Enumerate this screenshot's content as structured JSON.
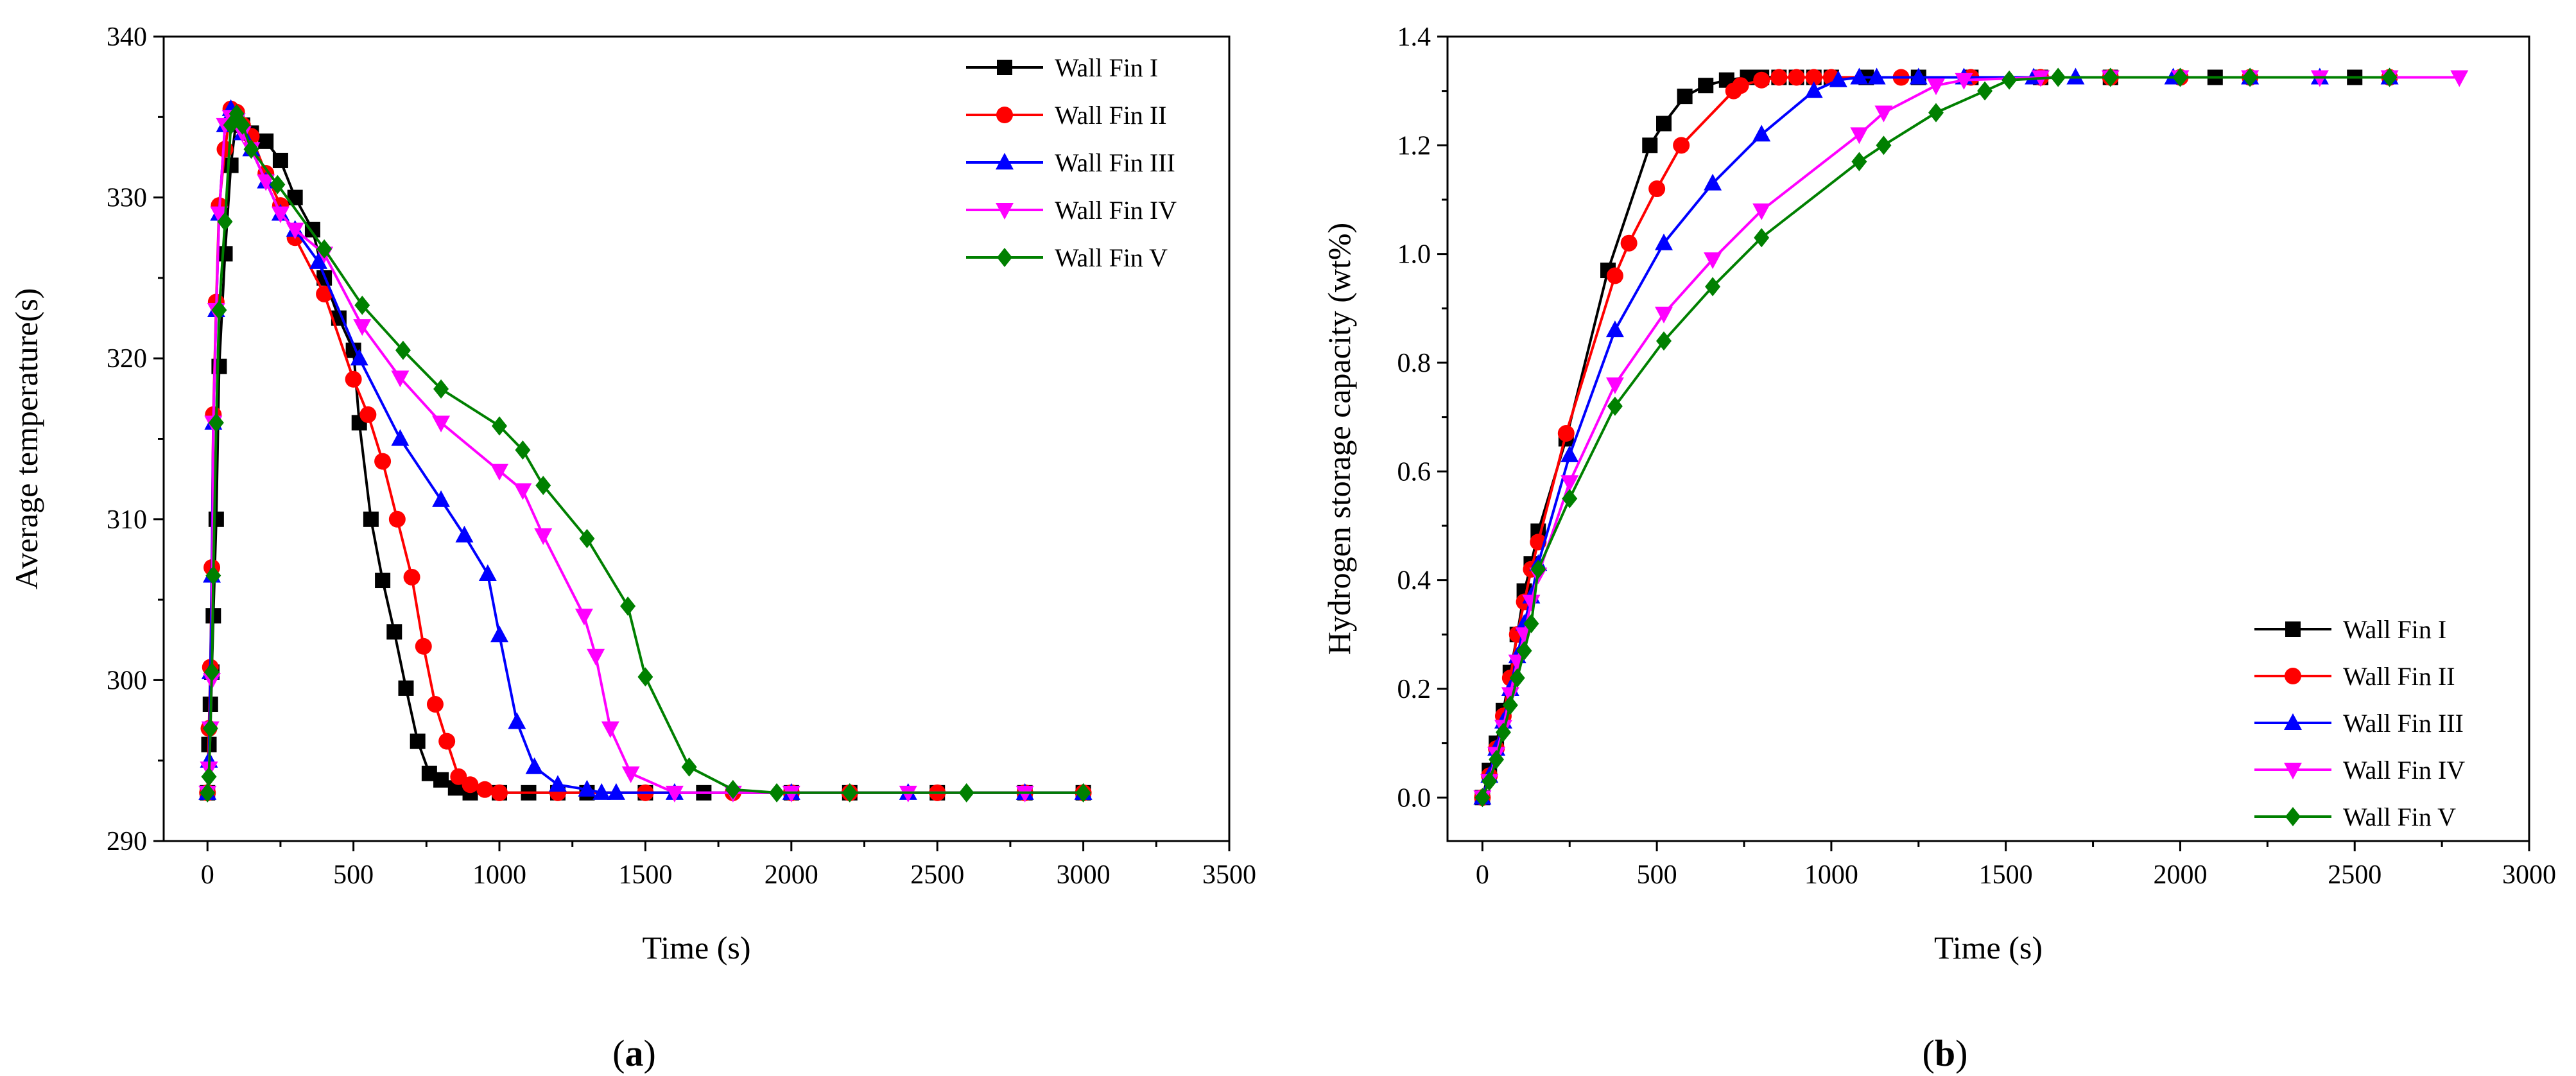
{
  "figure": {
    "panels": [
      {
        "caption_open": "(",
        "caption_letter": "a",
        "caption_close": ")"
      },
      {
        "caption_open": "(",
        "caption_letter": "b",
        "caption_close": ")"
      }
    ]
  },
  "chart_data": [
    {
      "type": "line",
      "panel": "a",
      "title": "",
      "xlabel": "Time (s)",
      "ylabel": "Average temperature(s)",
      "xlim": [
        -150,
        3500
      ],
      "ylim": [
        290,
        340
      ],
      "xticks": [
        0,
        500,
        1000,
        1500,
        2000,
        2500,
        3000,
        3500
      ],
      "yticks": [
        290,
        300,
        310,
        320,
        330,
        340
      ],
      "legend_position": "top-right",
      "series": [
        {
          "name": "Wall Fin I",
          "color": "#000000",
          "marker": "square",
          "x": [
            0,
            5,
            10,
            15,
            20,
            30,
            40,
            60,
            80,
            100,
            120,
            150,
            200,
            250,
            300,
            360,
            400,
            450,
            500,
            520,
            560,
            600,
            640,
            680,
            720,
            760,
            800,
            850,
            900,
            1000,
            1100,
            1200,
            1300,
            1500,
            1700,
            2000,
            2200,
            2500,
            2800,
            3000
          ],
          "y": [
            293,
            296,
            298.5,
            300.5,
            304,
            310,
            319.5,
            326.5,
            332,
            335,
            334.5,
            334,
            333.5,
            332.3,
            330,
            328,
            325,
            322.5,
            320.5,
            316,
            310,
            306.2,
            303,
            299.5,
            296.2,
            294.2,
            293.8,
            293.3,
            293,
            293,
            293,
            293,
            293,
            293,
            293,
            293,
            293,
            293,
            293,
            293
          ]
        },
        {
          "name": "Wall Fin II",
          "color": "#ff0000",
          "marker": "circle",
          "x": [
            0,
            5,
            10,
            15,
            20,
            30,
            40,
            60,
            80,
            100,
            120,
            150,
            200,
            250,
            300,
            400,
            500,
            550,
            600,
            650,
            700,
            740,
            780,
            820,
            860,
            900,
            950,
            1000,
            1200,
            1500,
            1800,
            2000,
            2200,
            2500,
            2800,
            3000
          ],
          "y": [
            293,
            297,
            300.8,
            307,
            316.5,
            323.5,
            329.5,
            333,
            335.5,
            335.3,
            334.5,
            333.8,
            331.5,
            329.5,
            327.5,
            324,
            318.7,
            316.5,
            313.6,
            310,
            306.4,
            302.1,
            298.5,
            296.2,
            294,
            293.5,
            293.2,
            293,
            293,
            293,
            293,
            293,
            293,
            293,
            293,
            293
          ]
        },
        {
          "name": "Wall Fin III",
          "color": "#0000ff",
          "marker": "triangle-up",
          "x": [
            0,
            5,
            10,
            15,
            20,
            30,
            40,
            60,
            80,
            100,
            120,
            150,
            200,
            250,
            300,
            380,
            520,
            660,
            800,
            880,
            960,
            1000,
            1060,
            1120,
            1200,
            1300,
            1350,
            1400,
            1600,
            2000,
            2400,
            2800,
            3000
          ],
          "y": [
            293,
            295,
            300.5,
            306.5,
            316,
            323,
            329,
            334.5,
            335.5,
            335,
            334,
            333,
            331,
            329,
            328,
            326,
            320,
            315,
            311.2,
            309,
            306.6,
            302.8,
            297.4,
            294.6,
            293.5,
            293.2,
            293,
            293,
            293,
            293,
            293,
            293,
            293
          ]
        },
        {
          "name": "Wall Fin IV",
          "color": "#ff00ff",
          "marker": "triangle-down",
          "x": [
            0,
            5,
            10,
            15,
            20,
            30,
            40,
            60,
            80,
            100,
            120,
            150,
            200,
            250,
            300,
            400,
            530,
            660,
            800,
            1000,
            1080,
            1150,
            1290,
            1330,
            1380,
            1450,
            1600,
            1800,
            2000,
            2400,
            2800
          ],
          "y": [
            293,
            294.5,
            297,
            300,
            316,
            323,
            329,
            334.5,
            335,
            334.8,
            334,
            333,
            331,
            329,
            328,
            326.5,
            322,
            318.8,
            316,
            313,
            311.8,
            309,
            304,
            301.5,
            297,
            294.2,
            293,
            293,
            293,
            293,
            293
          ]
        },
        {
          "name": "Wall Fin V",
          "color": "#008000",
          "marker": "diamond",
          "x": [
            0,
            5,
            10,
            15,
            20,
            30,
            40,
            60,
            80,
            100,
            120,
            150,
            240,
            400,
            530,
            670,
            800,
            1000,
            1080,
            1150,
            1300,
            1440,
            1500,
            1650,
            1800,
            1950,
            2200,
            2600,
            3000
          ],
          "y": [
            293,
            294,
            297,
            300.5,
            306.5,
            316,
            323,
            328.5,
            334.5,
            335.2,
            334.5,
            333,
            330.8,
            326.8,
            323.3,
            320.5,
            318.1,
            315.8,
            314.3,
            312.1,
            308.8,
            304.6,
            300.2,
            294.6,
            293.2,
            293,
            293,
            293,
            293
          ]
        }
      ]
    },
    {
      "type": "line",
      "panel": "b",
      "title": "",
      "xlabel": "Time (s)",
      "ylabel": "Hydrogen storage capacity (wt%)",
      "xlim": [
        -100,
        3000
      ],
      "ylim": [
        -0.08,
        1.4
      ],
      "xticks": [
        0,
        500,
        1000,
        1500,
        2000,
        2500,
        3000
      ],
      "yticks": [
        0.0,
        0.2,
        0.4,
        0.6,
        0.8,
        1.0,
        1.2,
        1.4
      ],
      "legend_position": "bottom-right",
      "series": [
        {
          "name": "Wall Fin I",
          "color": "#000000",
          "marker": "square",
          "x": [
            0,
            20,
            40,
            60,
            80,
            100,
            120,
            140,
            160,
            240,
            360,
            480,
            520,
            580,
            640,
            700,
            760,
            800,
            850,
            900,
            950,
            1000,
            1100,
            1250,
            1400,
            1600,
            1800,
            2100,
            2500
          ],
          "y": [
            0,
            0.05,
            0.1,
            0.16,
            0.23,
            0.3,
            0.38,
            0.43,
            0.49,
            0.66,
            0.97,
            1.2,
            1.24,
            1.29,
            1.31,
            1.32,
            1.325,
            1.325,
            1.325,
            1.325,
            1.325,
            1.325,
            1.325,
            1.325,
            1.325,
            1.325,
            1.325,
            1.325,
            1.325
          ]
        },
        {
          "name": "Wall Fin II",
          "color": "#ff0000",
          "marker": "circle",
          "x": [
            0,
            20,
            40,
            60,
            80,
            100,
            120,
            140,
            160,
            240,
            380,
            420,
            500,
            570,
            720,
            740,
            800,
            850,
            900,
            950,
            1000,
            1200,
            1400,
            1600,
            1800,
            2000,
            2200,
            2600
          ],
          "y": [
            0,
            0.04,
            0.09,
            0.15,
            0.22,
            0.3,
            0.36,
            0.42,
            0.47,
            0.67,
            0.96,
            1.02,
            1.12,
            1.2,
            1.3,
            1.31,
            1.32,
            1.325,
            1.325,
            1.325,
            1.325,
            1.325,
            1.325,
            1.325,
            1.325,
            1.325,
            1.325,
            1.325
          ]
        },
        {
          "name": "Wall Fin III",
          "color": "#0000ff",
          "marker": "triangle-up",
          "x": [
            0,
            20,
            40,
            60,
            80,
            100,
            120,
            140,
            160,
            250,
            380,
            520,
            660,
            800,
            950,
            1020,
            1080,
            1130,
            1250,
            1380,
            1580,
            1700,
            1980,
            2200,
            2400,
            2600
          ],
          "y": [
            0,
            0.04,
            0.09,
            0.14,
            0.2,
            0.26,
            0.32,
            0.37,
            0.43,
            0.63,
            0.86,
            1.02,
            1.13,
            1.22,
            1.3,
            1.32,
            1.325,
            1.325,
            1.325,
            1.325,
            1.325,
            1.325,
            1.325,
            1.325,
            1.325,
            1.325
          ]
        },
        {
          "name": "Wall Fin IV",
          "color": "#ff00ff",
          "marker": "triangle-down",
          "x": [
            0,
            20,
            40,
            60,
            80,
            100,
            120,
            140,
            160,
            250,
            380,
            520,
            660,
            800,
            1080,
            1150,
            1300,
            1380,
            1600,
            1800,
            2000,
            2200,
            2400,
            2600,
            2800
          ],
          "y": [
            0,
            0.03,
            0.08,
            0.13,
            0.19,
            0.25,
            0.3,
            0.36,
            0.41,
            0.58,
            0.76,
            0.89,
            0.99,
            1.08,
            1.22,
            1.26,
            1.31,
            1.32,
            1.325,
            1.325,
            1.325,
            1.325,
            1.325,
            1.325,
            1.325
          ]
        },
        {
          "name": "Wall Fin V",
          "color": "#008000",
          "marker": "diamond",
          "x": [
            0,
            20,
            40,
            60,
            80,
            100,
            120,
            140,
            160,
            250,
            380,
            520,
            660,
            800,
            1080,
            1150,
            1300,
            1440,
            1510,
            1650,
            1800,
            2000,
            2200,
            2600
          ],
          "y": [
            0,
            0.03,
            0.07,
            0.12,
            0.17,
            0.22,
            0.27,
            0.32,
            0.42,
            0.55,
            0.72,
            0.84,
            0.94,
            1.03,
            1.17,
            1.2,
            1.26,
            1.3,
            1.32,
            1.325,
            1.325,
            1.325,
            1.325,
            1.325
          ]
        }
      ]
    }
  ]
}
